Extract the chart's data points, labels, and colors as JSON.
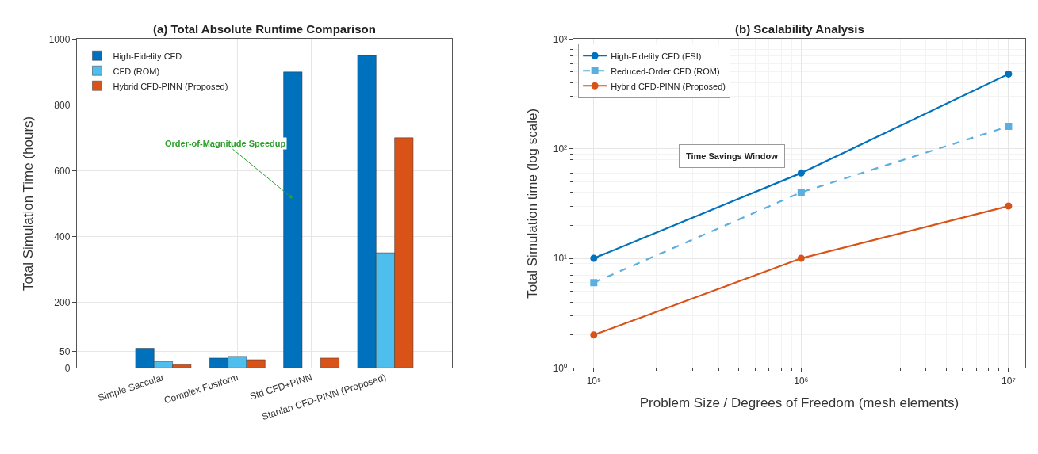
{
  "chart_data": [
    {
      "type": "bar",
      "title": "(a) Total Absolute Runtime Comparison",
      "ylabel": "Total Simulation Time (hours)",
      "categories": [
        "Simple Saccular",
        "Complex Fusiform",
        "Std CFD+PINN",
        "Stanlan CFD-PINN (Proposed)"
      ],
      "series": [
        {
          "name": "High-Fidelity CFD",
          "color": "#0072bd",
          "values": [
            60,
            30,
            900,
            950
          ]
        },
        {
          "name": "CFD (ROM)",
          "color": "#4dbeee",
          "values": [
            20,
            35,
            null,
            350
          ]
        },
        {
          "name": "Hybrid CFD-PINN (Proposed)",
          "color": "#d95319",
          "values": [
            10,
            25,
            30,
            700
          ]
        }
      ],
      "ylim": [
        0,
        1000
      ],
      "yticks": [
        0,
        50,
        200,
        400,
        600,
        800,
        1000
      ],
      "grid": true,
      "legend": "top left",
      "annotations": [
        "Order-of-Magnitude Speedup"
      ]
    },
    {
      "type": "line",
      "title": "(b) Scalability Analysis",
      "xlabel": "Problem Size / Degrees of Freedom (mesh elements)",
      "ylabel": "Total Simulation time (log scale)",
      "x": [
        100000,
        1000000,
        10000000
      ],
      "series": [
        {
          "name": "High-Fidelity CFD (FSI)",
          "color": "#0072bd",
          "values": [
            10,
            60,
            480
          ],
          "marker": "circle",
          "line_style": "solid"
        },
        {
          "name": "Reduced-Order CFD (ROM)",
          "color": "#5aaee0",
          "values": [
            6,
            40,
            160
          ],
          "marker": "square",
          "line_style": "dashed"
        },
        {
          "name": "Hybrid CFD-PINN (Proposed)",
          "color": "#d95319",
          "values": [
            2,
            10,
            30
          ],
          "marker": "circle",
          "line_style": "solid"
        }
      ],
      "log": "xy",
      "xlim": [
        80000,
        12000000
      ],
      "ylim": [
        1,
        1000
      ],
      "xticks": [
        {
          "value": 100000,
          "label": "10⁵"
        },
        {
          "value": 1000000,
          "label": "10⁶"
        },
        {
          "value": 10000000,
          "label": "10⁷"
        }
      ],
      "yticks": [
        {
          "value": 1,
          "label": "10⁰"
        },
        {
          "value": 10,
          "label": "10¹"
        },
        {
          "value": 100,
          "label": "10²"
        },
        {
          "value": 1000,
          "label": "10³"
        }
      ],
      "grid": true,
      "legend": "top left",
      "annotations": [
        "Time Savings Window"
      ]
    }
  ]
}
